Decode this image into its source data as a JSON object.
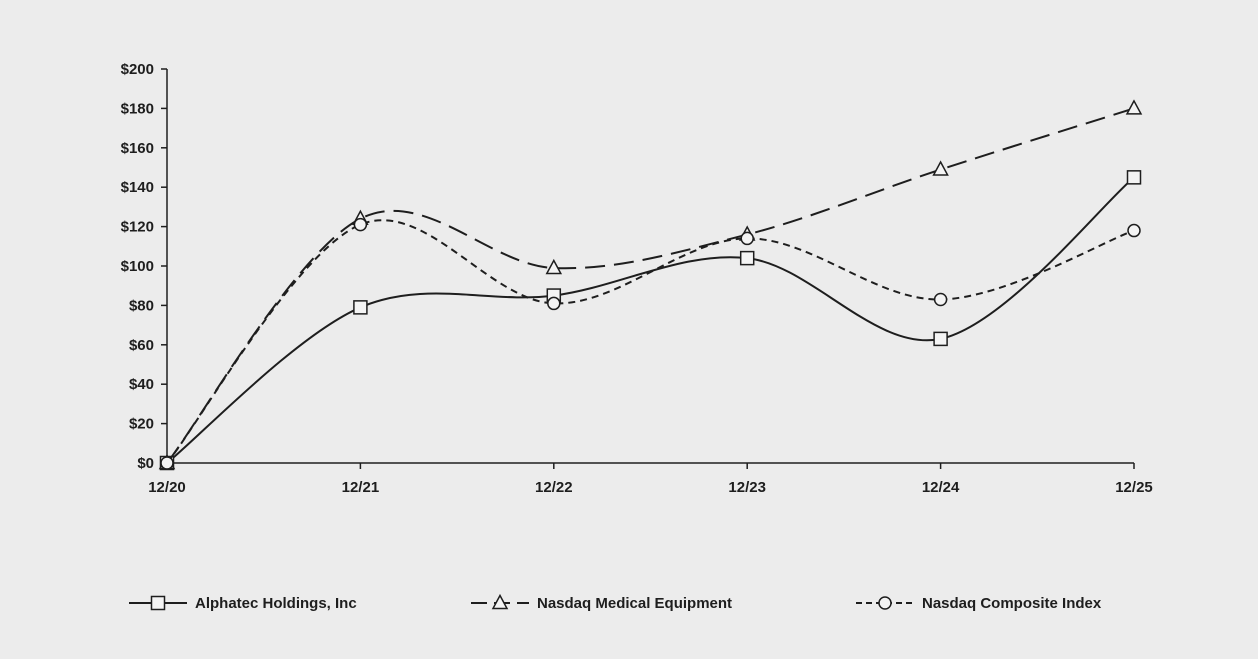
{
  "chart_data": {
    "type": "line",
    "title": "",
    "xlabel": "",
    "ylabel": "",
    "categories": [
      "12/20",
      "12/21",
      "12/22",
      "12/23",
      "12/24",
      "12/25"
    ],
    "y_ticks": [
      "$0",
      "$20",
      "$40",
      "$60",
      "$80",
      "$100",
      "$120",
      "$140",
      "$160",
      "$180",
      "$200"
    ],
    "ylim": [
      0,
      200
    ],
    "grid": false,
    "legend_position": "bottom",
    "series": [
      {
        "name": "Alphatec Holdings, Inc",
        "values": [
          0,
          79,
          85,
          104,
          63,
          145
        ],
        "marker": "square",
        "line_style": "solid",
        "color": "#1e1e1e"
      },
      {
        "name": "Nasdaq Medical Equipment",
        "values": [
          0,
          124,
          99,
          116,
          149,
          180
        ],
        "marker": "triangle",
        "line_style": "long-dash",
        "color": "#1e1e1e"
      },
      {
        "name": "Nasdaq Composite Index",
        "values": [
          0,
          121,
          81,
          114,
          83,
          118
        ],
        "marker": "circle",
        "line_style": "short-dash",
        "color": "#1e1e1e"
      }
    ]
  }
}
